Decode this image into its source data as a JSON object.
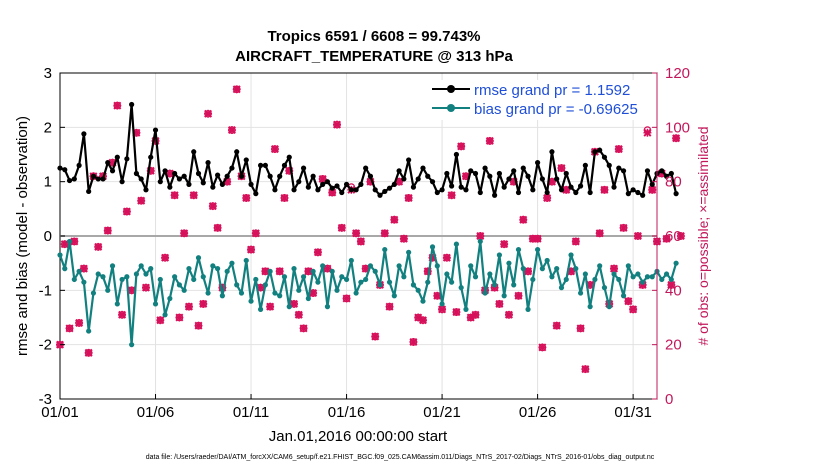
{
  "chart_data": {
    "type": "line",
    "title": "Tropics 6591 / 6608 = 99.743%",
    "subtitle": "AIRCRAFT_TEMPERATURE @ 313 hPa",
    "xlabel": "Jan.01,2016 00:00:00 start",
    "ylabel": "rmse and bias (model - observation)",
    "ylabel_right": "# of obs: o=possible; ×=assimilated",
    "xlim": [
      0,
      31.25
    ],
    "ylim": [
      -3,
      3
    ],
    "ylim_right": [
      0,
      120
    ],
    "x_ticks": [
      {
        "value": 0,
        "label": "01/01"
      },
      {
        "value": 5,
        "label": "01/06"
      },
      {
        "value": 10,
        "label": "01/11"
      },
      {
        "value": 15,
        "label": "01/16"
      },
      {
        "value": 20,
        "label": "01/21"
      },
      {
        "value": 25,
        "label": "01/26"
      },
      {
        "value": 30,
        "label": "01/31"
      }
    ],
    "y_ticks": [
      "-3",
      "-2",
      "-1",
      "0",
      "1",
      "2",
      "3"
    ],
    "y_ticks_right": [
      "0",
      "20",
      "40",
      "60",
      "80",
      "100",
      "120"
    ],
    "grid": true,
    "legend_position": "top-right",
    "colors": {
      "rmse": "#000000",
      "bias": "#138080",
      "obs": "#d6105a",
      "zero_line": "#a8a8a8"
    },
    "series": [
      {
        "name": "rmse grand pr = 1.1592",
        "color": "#000000",
        "x_start": 0,
        "x_step": 0.25,
        "values": [
          1.25,
          1.22,
          1.02,
          1.05,
          1.3,
          1.88,
          0.82,
          1.1,
          1.05,
          1.05,
          1.35,
          1.2,
          1.45,
          1.0,
          1.42,
          2.42,
          1.15,
          1.05,
          0.85,
          1.45,
          1.95,
          1.0,
          1.2,
          0.9,
          1.15,
          1.05,
          1.1,
          0.95,
          1.55,
          1.15,
          0.98,
          1.35,
          0.9,
          1.12,
          0.95,
          1.1,
          1.25,
          1.55,
          1.1,
          1.4,
          0.95,
          0.78,
          1.3,
          1.3,
          1.1,
          0.85,
          1.1,
          1.3,
          1.45,
          0.85,
          1.0,
          1.25,
          0.9,
          1.1,
          0.85,
          0.95,
          1.0,
          0.88,
          0.92,
          0.8,
          0.95,
          0.85,
          0.85,
          0.95,
          1.25,
          1.1,
          0.85,
          0.75,
          0.82,
          0.88,
          0.95,
          1.2,
          1.05,
          1.4,
          0.9,
          1.05,
          1.25,
          1.1,
          1.0,
          0.8,
          0.85,
          1.15,
          0.92,
          1.5,
          0.9,
          0.85,
          1.2,
          1.15,
          0.8,
          1.25,
          1.1,
          0.75,
          1.15,
          0.9,
          1.05,
          1.2,
          0.8,
          1.25,
          1.1,
          0.85,
          1.35,
          1.05,
          0.8,
          1.55,
          1.05,
          0.85,
          1.15,
          0.9,
          0.8,
          0.92,
          1.3,
          0.8,
          1.55,
          1.58,
          1.45,
          1.3,
          0.9,
          1.25,
          1.2,
          0.78,
          0.85,
          0.8,
          0.75,
          1.2,
          0.95,
          1.15,
          1.2,
          1.1,
          1.15,
          0.78
        ]
      },
      {
        "name": "bias grand pr = -0.69625",
        "color": "#138080",
        "x_start": 0,
        "x_step": 0.25,
        "values": [
          -0.35,
          -0.6,
          -0.1,
          -0.8,
          -0.65,
          -0.85,
          -1.75,
          -1.05,
          -0.7,
          -0.75,
          -1.0,
          -0.55,
          -1.25,
          -0.8,
          -0.75,
          -2.0,
          -0.7,
          -0.55,
          -0.7,
          -0.6,
          -1.25,
          -0.8,
          -1.45,
          -1.15,
          -0.75,
          -0.9,
          -1.0,
          -0.6,
          -0.8,
          -0.4,
          -0.75,
          -1.05,
          -0.55,
          -0.6,
          -1.1,
          -0.65,
          -0.5,
          -0.9,
          -1.05,
          -0.45,
          -1.2,
          -0.8,
          -1.35,
          -0.9,
          -0.65,
          -1.05,
          -1.1,
          -0.75,
          -1.3,
          -0.6,
          -1.0,
          -0.75,
          -1.15,
          -0.65,
          -0.85,
          -0.55,
          -1.3,
          -0.65,
          -1.0,
          -0.75,
          -0.8,
          -0.45,
          -1.05,
          -0.85,
          -0.8,
          -0.55,
          -0.65,
          -0.9,
          -0.25,
          -0.85,
          -1.1,
          -0.55,
          -0.75,
          -0.3,
          -0.9,
          -1.0,
          -1.2,
          -0.85,
          -0.2,
          -0.55,
          -1.25,
          -0.7,
          -0.85,
          -0.15,
          -0.95,
          -1.35,
          -0.55,
          -0.75,
          -0.1,
          -1.05,
          -0.7,
          -0.9,
          -0.35,
          -1.1,
          -0.5,
          -0.9,
          -0.25,
          -0.6,
          -1.35,
          -0.8,
          -0.25,
          -0.6,
          -0.45,
          -0.75,
          -0.6,
          -0.95,
          -0.8,
          -0.35,
          -0.6,
          -1.05,
          -0.7,
          -1.3,
          -0.8,
          -0.55,
          -0.95,
          -1.3,
          -0.7,
          -0.8,
          -1.1,
          -0.55,
          -0.75,
          -0.7,
          -0.85,
          -0.75,
          -0.75,
          -0.65,
          -0.8,
          -0.7,
          -0.8,
          -0.5
        ]
      }
    ],
    "obs_assimilated": {
      "name": "assimilated (×)",
      "x_start": 0,
      "x_step": 0.25,
      "values": [
        20,
        57,
        26,
        58,
        28,
        48,
        17,
        82,
        56,
        82,
        62,
        87,
        108,
        31,
        69,
        40,
        98,
        73,
        41,
        84,
        95,
        29,
        52,
        83,
        75,
        30,
        61,
        34,
        75,
        27,
        35,
        105,
        71,
        63,
        41,
        80,
        99,
        114,
        82,
        74,
        55,
        61,
        41,
        47,
        34,
        92,
        47,
        74,
        84,
        35,
        31,
        26,
        47,
        39,
        54,
        81,
        48,
        76,
        101,
        63,
        37,
        77,
        61,
        58,
        48,
        80,
        23,
        42,
        61,
        34,
        66,
        80,
        59,
        74,
        21,
        30,
        29,
        47,
        52,
        38,
        33,
        52,
        75,
        32,
        93,
        82,
        30,
        31,
        60,
        40,
        95,
        41,
        35,
        57,
        31,
        80,
        38,
        66,
        47,
        59,
        59,
        19,
        74,
        80,
        27,
        85,
        77,
        47,
        58,
        26,
        11,
        42,
        91,
        61,
        77,
        35,
        48,
        92,
        63,
        36,
        33,
        60,
        42,
        98,
        77,
        58,
        83,
        59,
        42,
        96,
        60
      ]
    },
    "obs_possible": {
      "name": "possible (o)",
      "x_start": 0,
      "x_step": 0.25,
      "values": [
        20,
        57,
        26,
        58,
        28,
        48,
        17,
        82,
        56,
        82,
        62,
        87,
        108,
        31,
        69,
        40,
        98,
        73,
        41,
        84,
        95,
        29,
        52,
        83,
        75,
        30,
        61,
        34,
        75,
        27,
        35,
        105,
        71,
        63,
        41,
        80,
        99,
        114,
        82,
        74,
        55,
        61,
        41,
        47,
        34,
        92,
        47,
        74,
        84,
        35,
        31,
        26,
        47,
        39,
        54,
        81,
        48,
        76,
        101,
        63,
        37,
        78,
        61,
        58,
        48,
        80,
        23,
        42,
        61,
        34,
        66,
        80,
        59,
        74,
        21,
        30,
        29,
        47,
        52,
        38,
        33,
        52,
        75,
        32,
        93,
        82,
        30,
        31,
        60,
        40,
        95,
        41,
        35,
        57,
        31,
        80,
        38,
        66,
        47,
        59,
        59,
        19,
        74,
        80,
        27,
        85,
        77,
        47,
        58,
        26,
        11,
        42,
        91,
        61,
        77,
        35,
        48,
        92,
        63,
        36,
        33,
        60,
        42,
        99,
        77,
        58,
        83,
        59,
        42,
        96,
        60
      ]
    },
    "footer": "data file: /Users/raeder/DAI/ATM_forcXX/CAM6_setup/f.e21.FHIST_BGC.f09_025.CAM6assim.011/Diags_NTrS_2017-02/Diags_NTrS_2016-01/obs_diag_output.nc"
  }
}
